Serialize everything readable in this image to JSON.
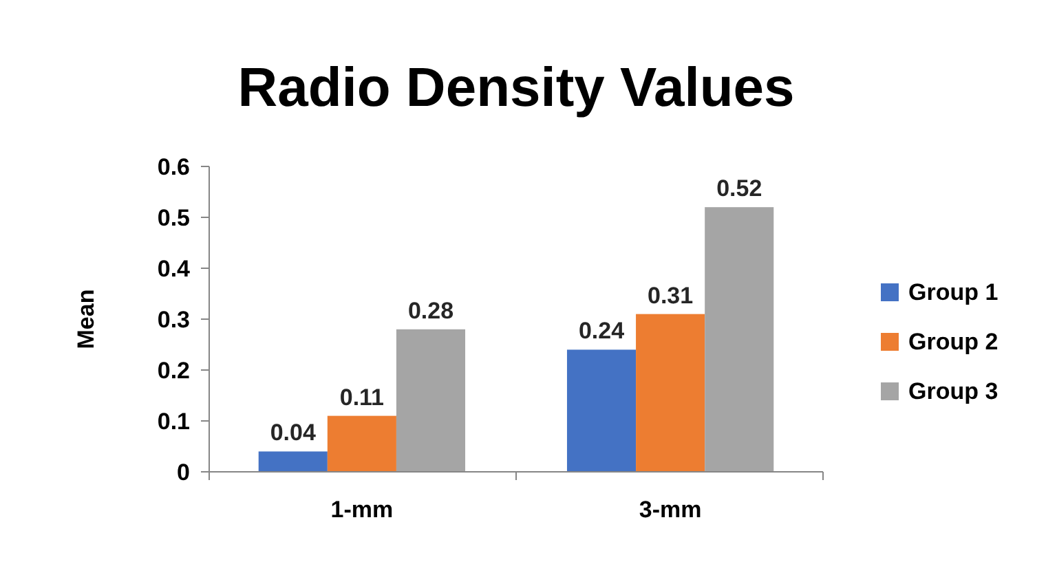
{
  "chart_data": {
    "type": "bar",
    "title": "Radio Density Values",
    "ylabel": "Mean",
    "categories": [
      "1-mm",
      "3-mm"
    ],
    "series": [
      {
        "name": "Group 1",
        "color": "#4472c4",
        "values": [
          0.04,
          0.24
        ]
      },
      {
        "name": "Group 2",
        "color": "#ed7d31",
        "values": [
          0.11,
          0.31
        ]
      },
      {
        "name": "Group 3",
        "color": "#a5a5a5",
        "values": [
          0.28,
          0.52
        ]
      }
    ],
    "ylim": [
      0,
      0.6
    ],
    "yticks": [
      0,
      0.1,
      0.2,
      0.3,
      0.4,
      0.5,
      0.6
    ],
    "grid": false,
    "legend": "right",
    "data_labels": true
  }
}
